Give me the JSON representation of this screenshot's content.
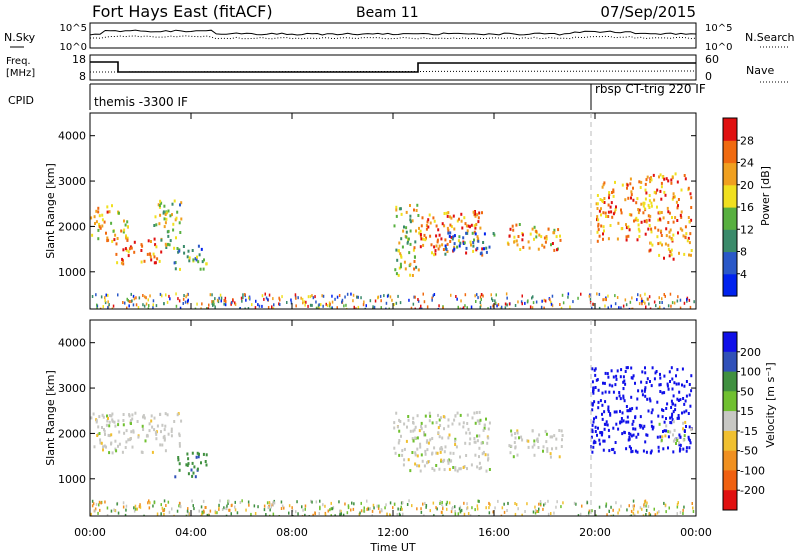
{
  "header": {
    "station": "Fort Hays East (fitACF)",
    "beam": "Beam 11",
    "date": "07/Sep/2015"
  },
  "noise_panel": {
    "left_label": "N.Sky",
    "right_label": "N.Search",
    "left_ticks": [
      "10^5",
      "10^0"
    ],
    "right_ticks": [
      "10^5",
      "10^0"
    ]
  },
  "freq_panel": {
    "left_label_line1": "Freq.",
    "left_label_line2": "[MHz]",
    "right_label": "Nave",
    "left_ticks": [
      "18",
      "8"
    ],
    "right_ticks": [
      "60",
      "0"
    ]
  },
  "cpid_panel": {
    "label": "CPID",
    "programs": [
      "themis -3300 IF",
      "rbsp CT-trig 220 IF"
    ]
  },
  "x_axis": {
    "label": "Time UT",
    "ticks": [
      "00:00",
      "04:00",
      "08:00",
      "12:00",
      "16:00",
      "20:00",
      "00:00"
    ]
  },
  "power_panel": {
    "ylabel": "Slant Range [km]",
    "yticks": [
      "1000",
      "2000",
      "3000",
      "4000"
    ],
    "colorbar_label": "Power [dB]",
    "colorbar_ticks": [
      "4",
      "8",
      "12",
      "16",
      "20",
      "24",
      "28"
    ]
  },
  "velocity_panel": {
    "ylabel": "Slant Range [km]",
    "yticks": [
      "1000",
      "2000",
      "3000",
      "4000"
    ],
    "colorbar_label": "Velocity [m s⁻¹]",
    "colorbar_ticks": [
      "200",
      "100",
      "50",
      "15",
      "-15",
      "-50",
      "-100",
      "-200"
    ]
  },
  "colors": {
    "power_scale": [
      "#0022ee",
      "#2a58c8",
      "#3a8a6a",
      "#58b040",
      "#f0e020",
      "#f0a020",
      "#f06a10",
      "#e01010"
    ],
    "velocity_scale": [
      "#1010e8",
      "#3050b8",
      "#409040",
      "#70c030",
      "#c8c8c4",
      "#f0c030",
      "#f09020",
      "#f06010",
      "#e01010"
    ]
  },
  "chart_data": [
    {
      "type": "heatmap",
      "title": "Power",
      "x_range_hours": [
        0,
        24
      ],
      "y_range_km": [
        180,
        4500
      ],
      "value_range": [
        0,
        30
      ],
      "blobs": [
        {
          "t0": 0.0,
          "t1": 1.5,
          "r0": 1700,
          "r1": 2500,
          "value": 20
        },
        {
          "t0": 1.0,
          "t1": 2.8,
          "r0": 1200,
          "r1": 1800,
          "value": 24
        },
        {
          "t0": 2.5,
          "t1": 3.6,
          "r0": 1500,
          "r1": 2600,
          "value": 14
        },
        {
          "t0": 3.3,
          "t1": 4.6,
          "r0": 1050,
          "r1": 1600,
          "value": 10
        },
        {
          "t0": 12.0,
          "t1": 13.0,
          "r0": 900,
          "r1": 2500,
          "value": 16
        },
        {
          "t0": 13.0,
          "t1": 15.5,
          "r0": 1400,
          "r1": 2400,
          "value": 24
        },
        {
          "t0": 14.0,
          "t1": 16.0,
          "r0": 1400,
          "r1": 1900,
          "value": 6
        },
        {
          "t0": 16.5,
          "t1": 18.7,
          "r0": 1500,
          "r1": 2100,
          "value": 20
        },
        {
          "t0": 20.0,
          "t1": 22.0,
          "r0": 1700,
          "r1": 3100,
          "value": 22
        },
        {
          "t0": 22.0,
          "t1": 23.8,
          "r0": 1300,
          "r1": 3200,
          "value": 22
        }
      ]
    },
    {
      "type": "heatmap",
      "title": "Velocity",
      "x_range_hours": [
        0,
        24
      ],
      "y_range_km": [
        180,
        4500
      ],
      "value_range": [
        -200,
        200
      ],
      "blobs": [
        {
          "t0": 0.0,
          "t1": 3.6,
          "r0": 1600,
          "r1": 2500,
          "value": 0
        },
        {
          "t0": 3.3,
          "t1": 4.6,
          "r0": 1050,
          "r1": 1600,
          "value": 60
        },
        {
          "t0": 12.0,
          "t1": 15.8,
          "r0": 1200,
          "r1": 2500,
          "value": 0
        },
        {
          "t0": 16.5,
          "t1": 18.7,
          "r0": 1500,
          "r1": 2100,
          "value": 0
        },
        {
          "t0": 19.8,
          "t1": 23.8,
          "r0": 1600,
          "r1": 3500,
          "value": 250
        },
        {
          "t0": 22.5,
          "t1": 23.8,
          "r0": 1800,
          "r1": 2300,
          "value": 0
        }
      ]
    }
  ]
}
